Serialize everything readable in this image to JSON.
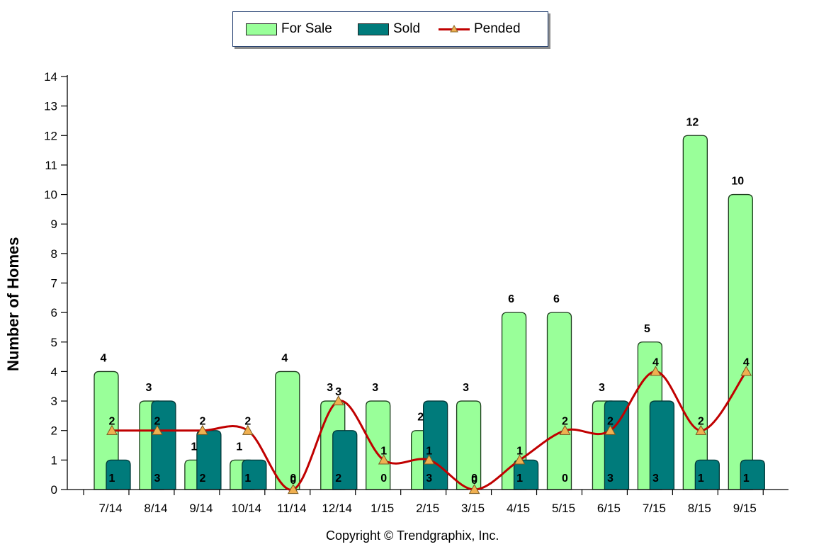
{
  "chart_data": {
    "type": "bar",
    "categories": [
      "7/14",
      "8/14",
      "9/14",
      "10/14",
      "11/14",
      "12/14",
      "1/15",
      "2/15",
      "3/15",
      "4/15",
      "5/15",
      "6/15",
      "7/15",
      "8/15",
      "9/15"
    ],
    "series": [
      {
        "name": "For Sale",
        "kind": "bar",
        "color": "#99ff99",
        "values": [
          4,
          3,
          1,
          1,
          4,
          3,
          3,
          2,
          3,
          6,
          6,
          3,
          5,
          12,
          10
        ]
      },
      {
        "name": "Sold",
        "kind": "bar",
        "color": "#007b7b",
        "values": [
          1,
          3,
          2,
          1,
          0,
          2,
          0,
          3,
          0,
          1,
          0,
          3,
          3,
          1,
          1
        ]
      },
      {
        "name": "Pended",
        "kind": "line",
        "color": "#c00000",
        "marker": "triangle",
        "values": [
          2,
          2,
          2,
          2,
          0,
          3,
          1,
          1,
          0,
          1,
          2,
          2,
          4,
          2,
          4
        ]
      }
    ],
    "ylabel": "Number of Homes",
    "xlabel": "",
    "ylim": [
      0,
      14
    ],
    "yticks": [
      0,
      1,
      2,
      3,
      4,
      5,
      6,
      7,
      8,
      9,
      10,
      11,
      12,
      13,
      14
    ],
    "legend": "top-center",
    "grid": false
  },
  "footer": {
    "copyright": "Copyright © Trendgraphix, Inc."
  }
}
